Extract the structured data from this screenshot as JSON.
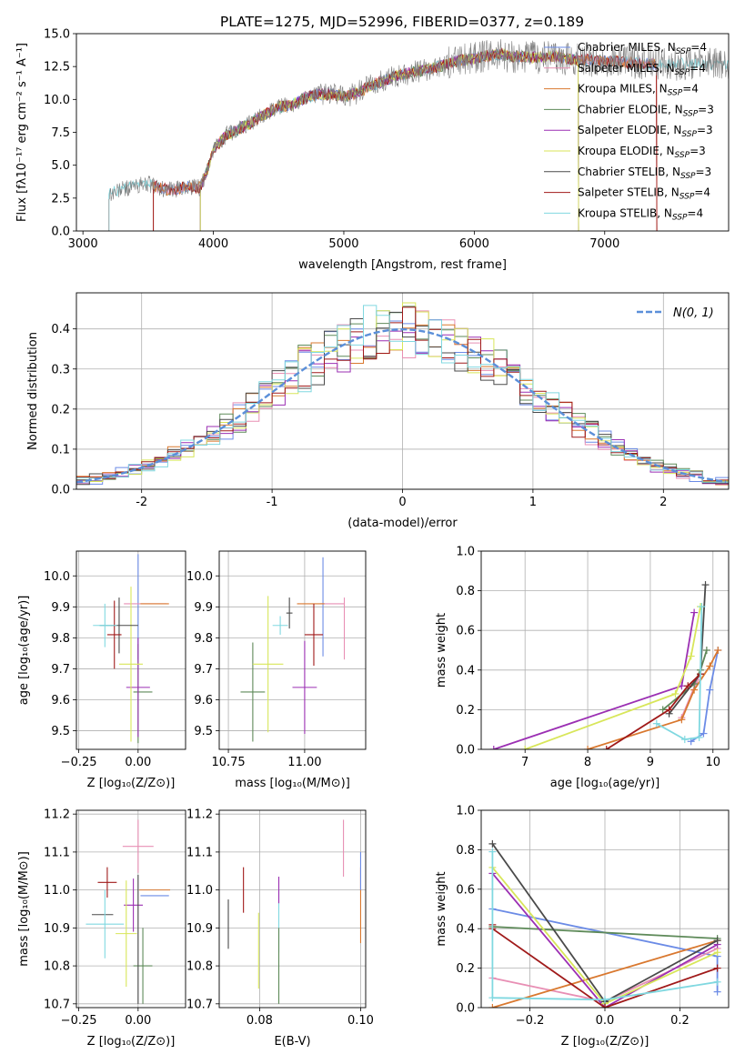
{
  "figure": {
    "title": "PLATE=1275, MJD=52996, FIBERID=0377, z=0.189"
  },
  "colors": {
    "palette": [
      "#6b8be6",
      "#e88fb4",
      "#d9782f",
      "#5e8a59",
      "#9b2fb3",
      "#d8e65a",
      "#4a4a4a",
      "#a01a1a",
      "#80d8e0"
    ],
    "grid": "#b0b0b0",
    "axis": "#000000",
    "observed_spectrum": "#808080",
    "normal_curve": "#5b8fd9"
  },
  "chart_data": [
    {
      "id": "spectrum",
      "type": "line",
      "title": "PLATE=1275, MJD=52996, FIBERID=0377, z=0.189",
      "xlabel": "wavelength [Angstrom, rest frame]",
      "ylabel": "Flux [fλ10⁻¹⁷ erg cm⁻² s⁻¹ A⁻¹]",
      "xlim": [
        2950,
        7950
      ],
      "ylim": [
        0,
        15
      ],
      "xticks": [
        3000,
        4000,
        5000,
        6000,
        7000
      ],
      "yticks": [
        0.0,
        2.5,
        5.0,
        7.5,
        10.0,
        12.5,
        15.0
      ],
      "ytick_labels": [
        "0.0",
        "2.5",
        "5.0",
        "7.5",
        "10.0",
        "12.5",
        "15.0"
      ],
      "legend_position": "right",
      "continuum": {
        "x": [
          3200,
          3300,
          3400,
          3500,
          3600,
          3700,
          3800,
          3900,
          3950,
          4000,
          4100,
          4200,
          4300,
          4400,
          4500,
          4600,
          4700,
          4800,
          4900,
          5000,
          5100,
          5200,
          5300,
          5400,
          5500,
          5600,
          5700,
          5800,
          5900,
          6000,
          6100,
          6200,
          6300,
          6400,
          6500,
          6600,
          6700,
          6800,
          6900,
          7000,
          7100,
          7200,
          7300,
          7400
        ],
        "y": [
          2.8,
          3.2,
          3.4,
          3.6,
          3.2,
          3.1,
          3.4,
          3.3,
          4.5,
          6.2,
          7.3,
          7.8,
          8.3,
          8.9,
          9.4,
          9.6,
          10.1,
          10.4,
          10.4,
          10.2,
          10.5,
          11.0,
          11.4,
          11.8,
          12.0,
          12.2,
          12.4,
          12.7,
          13.0,
          13.1,
          13.3,
          13.4,
          13.3,
          13.2,
          13.2,
          13.3,
          13.1,
          13.0,
          13.0,
          12.9,
          12.9,
          12.8,
          12.7,
          12.7
        ]
      },
      "series": [
        {
          "name": "Chabrier MILES, N$_{SSP}$=4",
          "label_main": "Chabrier MILES, N",
          "label_sub": "SSP",
          "label_tail": "=4",
          "x_start": 3540,
          "x_end": 7400
        },
        {
          "name": "Salpeter MILES, N$_{SSP}$=4",
          "label_main": "Salpeter MILES, N",
          "label_sub": "SSP",
          "label_tail": "=4",
          "x_start": 3540,
          "x_end": 7400
        },
        {
          "name": "Kroupa MILES, N$_{SSP}$=4",
          "label_main": "Kroupa MILES, N",
          "label_sub": "SSP",
          "label_tail": "=4",
          "x_start": 3540,
          "x_end": 7400
        },
        {
          "name": "Chabrier ELODIE, N$_{SSP}$=3",
          "label_main": "Chabrier ELODIE, N",
          "label_sub": "SSP",
          "label_tail": "=3",
          "x_start": 3900,
          "x_end": 6800
        },
        {
          "name": "Salpeter ELODIE, N$_{SSP}$=3",
          "label_main": "Salpeter ELODIE, N",
          "label_sub": "SSP",
          "label_tail": "=3",
          "x_start": 3900,
          "x_end": 6800
        },
        {
          "name": "Kroupa ELODIE, N$_{SSP}$=3",
          "label_main": "Kroupa ELODIE, N",
          "label_sub": "SSP",
          "label_tail": "=3",
          "x_start": 3900,
          "x_end": 6800
        },
        {
          "name": "Chabrier STELIB, N$_{SSP}$=3",
          "label_main": "Chabrier STELIB, N",
          "label_sub": "SSP",
          "label_tail": "=3",
          "x_start": 3200,
          "x_end": 7950
        },
        {
          "name": "Salpeter STELIB, N$_{SSP}$=4",
          "label_main": "Salpeter STELIB, N",
          "label_sub": "SSP",
          "label_tail": "=4",
          "x_start": 3540,
          "x_end": 7400
        },
        {
          "name": "Kroupa STELIB, N$_{SSP}$=4",
          "label_main": "Kroupa STELIB, N",
          "label_sub": "SSP",
          "label_tail": "=4",
          "x_start": 3200,
          "x_end": 7950
        }
      ]
    },
    {
      "id": "residuals",
      "type": "area",
      "xlabel": "(data-model)/error",
      "ylabel": "Normed distribution",
      "xlim": [
        -2.5,
        2.5
      ],
      "ylim": [
        0,
        0.49
      ],
      "xticks": [
        -2,
        -1,
        0,
        1,
        2
      ],
      "yticks": [
        0.0,
        0.1,
        0.2,
        0.3,
        0.4
      ],
      "ytick_labels": [
        "0.0",
        "0.1",
        "0.2",
        "0.3",
        "0.4"
      ],
      "bin_width": 0.1,
      "legend_position": "top-right",
      "legend_label": "N(0, 1)",
      "series": [
        {
          "name": "Chabrier MILES"
        },
        {
          "name": "Salpeter MILES"
        },
        {
          "name": "Kroupa MILES"
        },
        {
          "name": "Chabrier ELODIE"
        },
        {
          "name": "Salpeter ELODIE"
        },
        {
          "name": "Kroupa ELODIE"
        },
        {
          "name": "Chabrier STELIB"
        },
        {
          "name": "Salpeter STELIB"
        },
        {
          "name": "Kroupa STELIB"
        }
      ]
    },
    {
      "id": "age_vs_Z",
      "type": "scatter",
      "xlabel": "Z [log₁₀(Z/Z⊙)]",
      "ylabel": "age  [log₁₀(age/yr)]",
      "xlim": [
        -0.26,
        0.2
      ],
      "ylim": [
        9.44,
        10.08
      ],
      "xticks": [
        -0.25,
        0.0
      ],
      "xtick_labels": [
        "−0.25",
        "0.00"
      ],
      "yticks": [
        9.5,
        9.6,
        9.7,
        9.8,
        9.9,
        10.0
      ],
      "ytick_labels": [
        "9.5",
        "9.6",
        "9.7",
        "9.8",
        "9.9",
        "10.0"
      ],
      "points": [
        {
          "x": 0.0,
          "y": 9.9,
          "xerr": 0.0,
          "yerr": 0.17,
          "series": 0
        },
        {
          "x": 0.03,
          "y": 9.91,
          "xerr": 0.18,
          "yerr": 0.0,
          "series": 1
        },
        {
          "x": 0.07,
          "y": 9.91,
          "xerr": 0.12,
          "yerr": 0.0,
          "series": 2
        },
        {
          "x": 0.02,
          "y": 9.625,
          "xerr": 0.08,
          "yerr": 0.0,
          "series": 3
        },
        {
          "x": 0.0,
          "y": 9.62,
          "xerr": 0.0,
          "yerr": 0.16,
          "series": 3
        },
        {
          "x": 0.0,
          "y": 9.64,
          "xerr": 0.1,
          "yerr": 0.16,
          "series": 4
        },
        {
          "x": -0.03,
          "y": 9.715,
          "xerr": 0.1,
          "yerr": 0.25,
          "series": 5
        },
        {
          "x": -0.08,
          "y": 9.84,
          "xerr": 0.16,
          "yerr": 0.09,
          "series": 6
        },
        {
          "x": -0.1,
          "y": 9.81,
          "xerr": 0.06,
          "yerr": 0.11,
          "series": 7
        },
        {
          "x": -0.14,
          "y": 9.84,
          "xerr": 0.05,
          "yerr": 0.07,
          "series": 8
        },
        {
          "x": -0.14,
          "y": 9.84,
          "xerr": 0.1,
          "yerr": 0.0,
          "series": 8
        }
      ]
    },
    {
      "id": "age_vs_mass",
      "type": "scatter",
      "xlabel": "mass [log₁₀(M/M⊙)]",
      "xlim": [
        10.72,
        11.2
      ],
      "ylim": [
        9.44,
        10.08
      ],
      "xticks": [
        10.75,
        11.0
      ],
      "xtick_labels": [
        "10.75",
        "11.00"
      ],
      "yticks": [
        9.5,
        9.6,
        9.7,
        9.8,
        9.9,
        10.0
      ],
      "ytick_labels": [
        "9.5",
        "9.6",
        "9.7",
        "9.8",
        "9.9",
        "10.0"
      ],
      "points": [
        {
          "x": 11.06,
          "y": 9.9,
          "xerr": 0.0,
          "yerr": 0.16,
          "series": 0
        },
        {
          "x": 11.09,
          "y": 9.91,
          "xerr": 0.08,
          "yerr": 0.0,
          "series": 1
        },
        {
          "x": 11.13,
          "y": 9.83,
          "xerr": 0.0,
          "yerr": 0.1,
          "series": 1
        },
        {
          "x": 11.02,
          "y": 9.91,
          "xerr": 0.09,
          "yerr": 0.0,
          "series": 2
        },
        {
          "x": 10.83,
          "y": 9.625,
          "xerr": 0.08,
          "yerr": 0.16,
          "series": 3
        },
        {
          "x": 11.0,
          "y": 9.64,
          "xerr": 0.08,
          "yerr": 0.15,
          "series": 4
        },
        {
          "x": 10.88,
          "y": 9.715,
          "xerr": 0.1,
          "yerr": 0.22,
          "series": 5
        },
        {
          "x": 10.95,
          "y": 9.88,
          "xerr": 0.02,
          "yerr": 0.05,
          "series": 6
        },
        {
          "x": 11.03,
          "y": 9.81,
          "xerr": 0.06,
          "yerr": 0.1,
          "series": 7
        },
        {
          "x": 10.92,
          "y": 9.84,
          "xerr": 0.05,
          "yerr": 0.03,
          "series": 8
        }
      ]
    },
    {
      "id": "weight_vs_age",
      "type": "line",
      "xlabel": "age  [log₁₀(age/yr)]",
      "ylabel": "mass weight",
      "xlim": [
        6.3,
        10.25
      ],
      "ylim": [
        0,
        1.0
      ],
      "xticks": [
        7,
        8,
        9,
        10
      ],
      "yticks": [
        0.0,
        0.2,
        0.4,
        0.6,
        0.8,
        1.0
      ],
      "ytick_labels": [
        "0.0",
        "0.2",
        "0.4",
        "0.6",
        "0.8",
        "1.0"
      ],
      "series": [
        {
          "x": [
            9.65,
            9.85,
            9.95,
            10.08
          ],
          "y": [
            0.04,
            0.08,
            0.3,
            0.5
          ]
        },
        {
          "x": [
            9.5,
            9.75,
            9.9
          ],
          "y": [
            0.16,
            0.35,
            0.5
          ]
        },
        {
          "x": [
            8.0,
            9.5,
            9.7,
            9.95,
            10.08
          ],
          "y": [
            0.0,
            0.15,
            0.3,
            0.42,
            0.5
          ]
        },
        {
          "x": [
            9.2,
            9.7,
            9.8,
            9.9
          ],
          "y": [
            0.2,
            0.33,
            0.4,
            0.5
          ]
        },
        {
          "x": [
            6.5,
            9.5,
            9.7
          ],
          "y": [
            0.0,
            0.32,
            0.69
          ]
        },
        {
          "x": [
            7.0,
            9.4,
            9.65,
            9.8
          ],
          "y": [
            0.0,
            0.28,
            0.47,
            0.72
          ]
        },
        {
          "x": [
            9.3,
            9.8,
            9.88
          ],
          "y": [
            0.18,
            0.38,
            0.83
          ]
        },
        {
          "x": [
            8.3,
            9.3,
            9.6,
            9.8
          ],
          "y": [
            0.0,
            0.2,
            0.32,
            0.38
          ]
        },
        {
          "x": [
            9.1,
            9.55,
            9.78,
            9.82
          ],
          "y": [
            0.13,
            0.05,
            0.06,
            0.72
          ]
        }
      ]
    },
    {
      "id": "mass_vs_Z",
      "type": "scatter",
      "xlabel": "Z [log₁₀(Z/Z⊙)]",
      "ylabel": "mass [log₁₀(M/M⊙)]",
      "xlim": [
        -0.26,
        0.2
      ],
      "ylim": [
        10.69,
        11.21
      ],
      "xticks": [
        -0.25,
        0.0
      ],
      "xtick_labels": [
        "−0.25",
        "0.00"
      ],
      "yticks": [
        10.7,
        10.8,
        10.9,
        11.0,
        11.1,
        11.2
      ],
      "ytick_labels": [
        "10.7",
        "10.8",
        "10.9",
        "11.0",
        "11.1",
        "11.2"
      ],
      "points": [
        {
          "x": 0.07,
          "y": 10.985,
          "xerr": 0.12,
          "yerr": 0.0,
          "series": 0
        },
        {
          "x": 0.0,
          "y": 11.115,
          "xerr": 0.13,
          "yerr": 0.07,
          "series": 1
        },
        {
          "x": 0.07,
          "y": 11.0,
          "xerr": 0.13,
          "yerr": 0.0,
          "series": 2
        },
        {
          "x": 0.02,
          "y": 10.8,
          "xerr": 0.08,
          "yerr": 0.1,
          "series": 3
        },
        {
          "x": -0.02,
          "y": 10.96,
          "xerr": 0.08,
          "yerr": 0.07,
          "series": 4
        },
        {
          "x": -0.05,
          "y": 10.885,
          "xerr": 0.09,
          "yerr": 0.14,
          "series": 5
        },
        {
          "x": -0.15,
          "y": 10.935,
          "xerr": 0.09,
          "yerr": 0.0,
          "series": 6
        },
        {
          "x": -0.13,
          "y": 11.02,
          "xerr": 0.08,
          "yerr": 0.04,
          "series": 7
        },
        {
          "x": -0.14,
          "y": 10.91,
          "xerr": 0.16,
          "yerr": 0.09,
          "series": 8
        },
        {
          "x": 0.0,
          "y": 10.87,
          "xerr": 0.0,
          "yerr": 0.17,
          "series": 6
        }
      ]
    },
    {
      "id": "mass_vs_EBV",
      "type": "scatter",
      "xlabel": "E(B-V)",
      "xlim": [
        0.072,
        0.101
      ],
      "ylim": [
        10.69,
        11.21
      ],
      "xticks": [
        0.08,
        0.1
      ],
      "xtick_labels": [
        "0.08",
        "0.10"
      ],
      "yticks": [
        10.7,
        10.8,
        10.9,
        11.0,
        11.1,
        11.2
      ],
      "ytick_labels": [
        "10.7",
        "10.8",
        "10.9",
        "11.0",
        "11.1",
        "11.2"
      ],
      "points": [
        {
          "x": 0.0738,
          "y": 10.91,
          "xerr": 0,
          "yerr": 0.065,
          "series": 6
        },
        {
          "x": 0.0768,
          "y": 11.0,
          "xerr": 0,
          "yerr": 0.06,
          "series": 7
        },
        {
          "x": 0.0798,
          "y": 10.84,
          "xerr": 0,
          "yerr": 0.1,
          "series": 5
        },
        {
          "x": 0.0838,
          "y": 10.92,
          "xerr": 0,
          "yerr": 0.085,
          "series": 8
        },
        {
          "x": 0.0838,
          "y": 11.0,
          "xerr": 0,
          "yerr": 0.035,
          "series": 4
        },
        {
          "x": 0.0838,
          "y": 10.8,
          "xerr": 0,
          "yerr": 0.1,
          "series": 3
        },
        {
          "x": 0.0966,
          "y": 11.11,
          "xerr": 0,
          "yerr": 0.075,
          "series": 1
        },
        {
          "x": 0.1,
          "y": 10.96,
          "xerr": 0,
          "yerr": 0.1,
          "series": 2
        },
        {
          "x": 0.1,
          "y": 11.05,
          "xerr": 0,
          "yerr": 0.05,
          "series": 0
        }
      ]
    },
    {
      "id": "weight_vs_Z",
      "type": "line",
      "xlabel": "Z [log₁₀(Z/Z⊙)]",
      "ylabel": "mass weight",
      "xlim": [
        -0.33,
        0.33
      ],
      "ylim": [
        0,
        1.0
      ],
      "xticks": [
        -0.2,
        0.0,
        0.2
      ],
      "xtick_labels": [
        "−0.2",
        "0.0",
        "0.2"
      ],
      "yticks": [
        0.0,
        0.2,
        0.4,
        0.6,
        0.8,
        1.0
      ],
      "ytick_labels": [
        "0.0",
        "0.2",
        "0.4",
        "0.6",
        "0.8",
        "1.0"
      ],
      "series": [
        {
          "x": [
            -0.3,
            0.3,
            0.3
          ],
          "y": [
            0.5,
            0.26,
            0.08
          ]
        },
        {
          "x": [
            -0.3,
            0.0,
            0.3
          ],
          "y": [
            0.15,
            0.03,
            0.3
          ]
        },
        {
          "x": [
            -0.3,
            0.3
          ],
          "y": [
            0.0,
            0.34
          ]
        },
        {
          "x": [
            -0.3,
            0.3
          ],
          "y": [
            0.41,
            0.35
          ]
        },
        {
          "x": [
            -0.3,
            0.0,
            0.3
          ],
          "y": [
            0.68,
            0.0,
            0.32
          ]
        },
        {
          "x": [
            -0.3,
            0.0,
            0.3
          ],
          "y": [
            0.71,
            0.02,
            0.28
          ]
        },
        {
          "x": [
            -0.3,
            0.0,
            0.3
          ],
          "y": [
            0.83,
            0.03,
            0.34
          ]
        },
        {
          "x": [
            -0.3,
            -0.3,
            0.0,
            0.3
          ],
          "y": [
            0.42,
            0.4,
            0.0,
            0.2
          ]
        },
        {
          "x": [
            -0.3,
            -0.3,
            0.0,
            0.3
          ],
          "y": [
            0.79,
            0.05,
            0.04,
            0.13
          ]
        }
      ]
    }
  ]
}
